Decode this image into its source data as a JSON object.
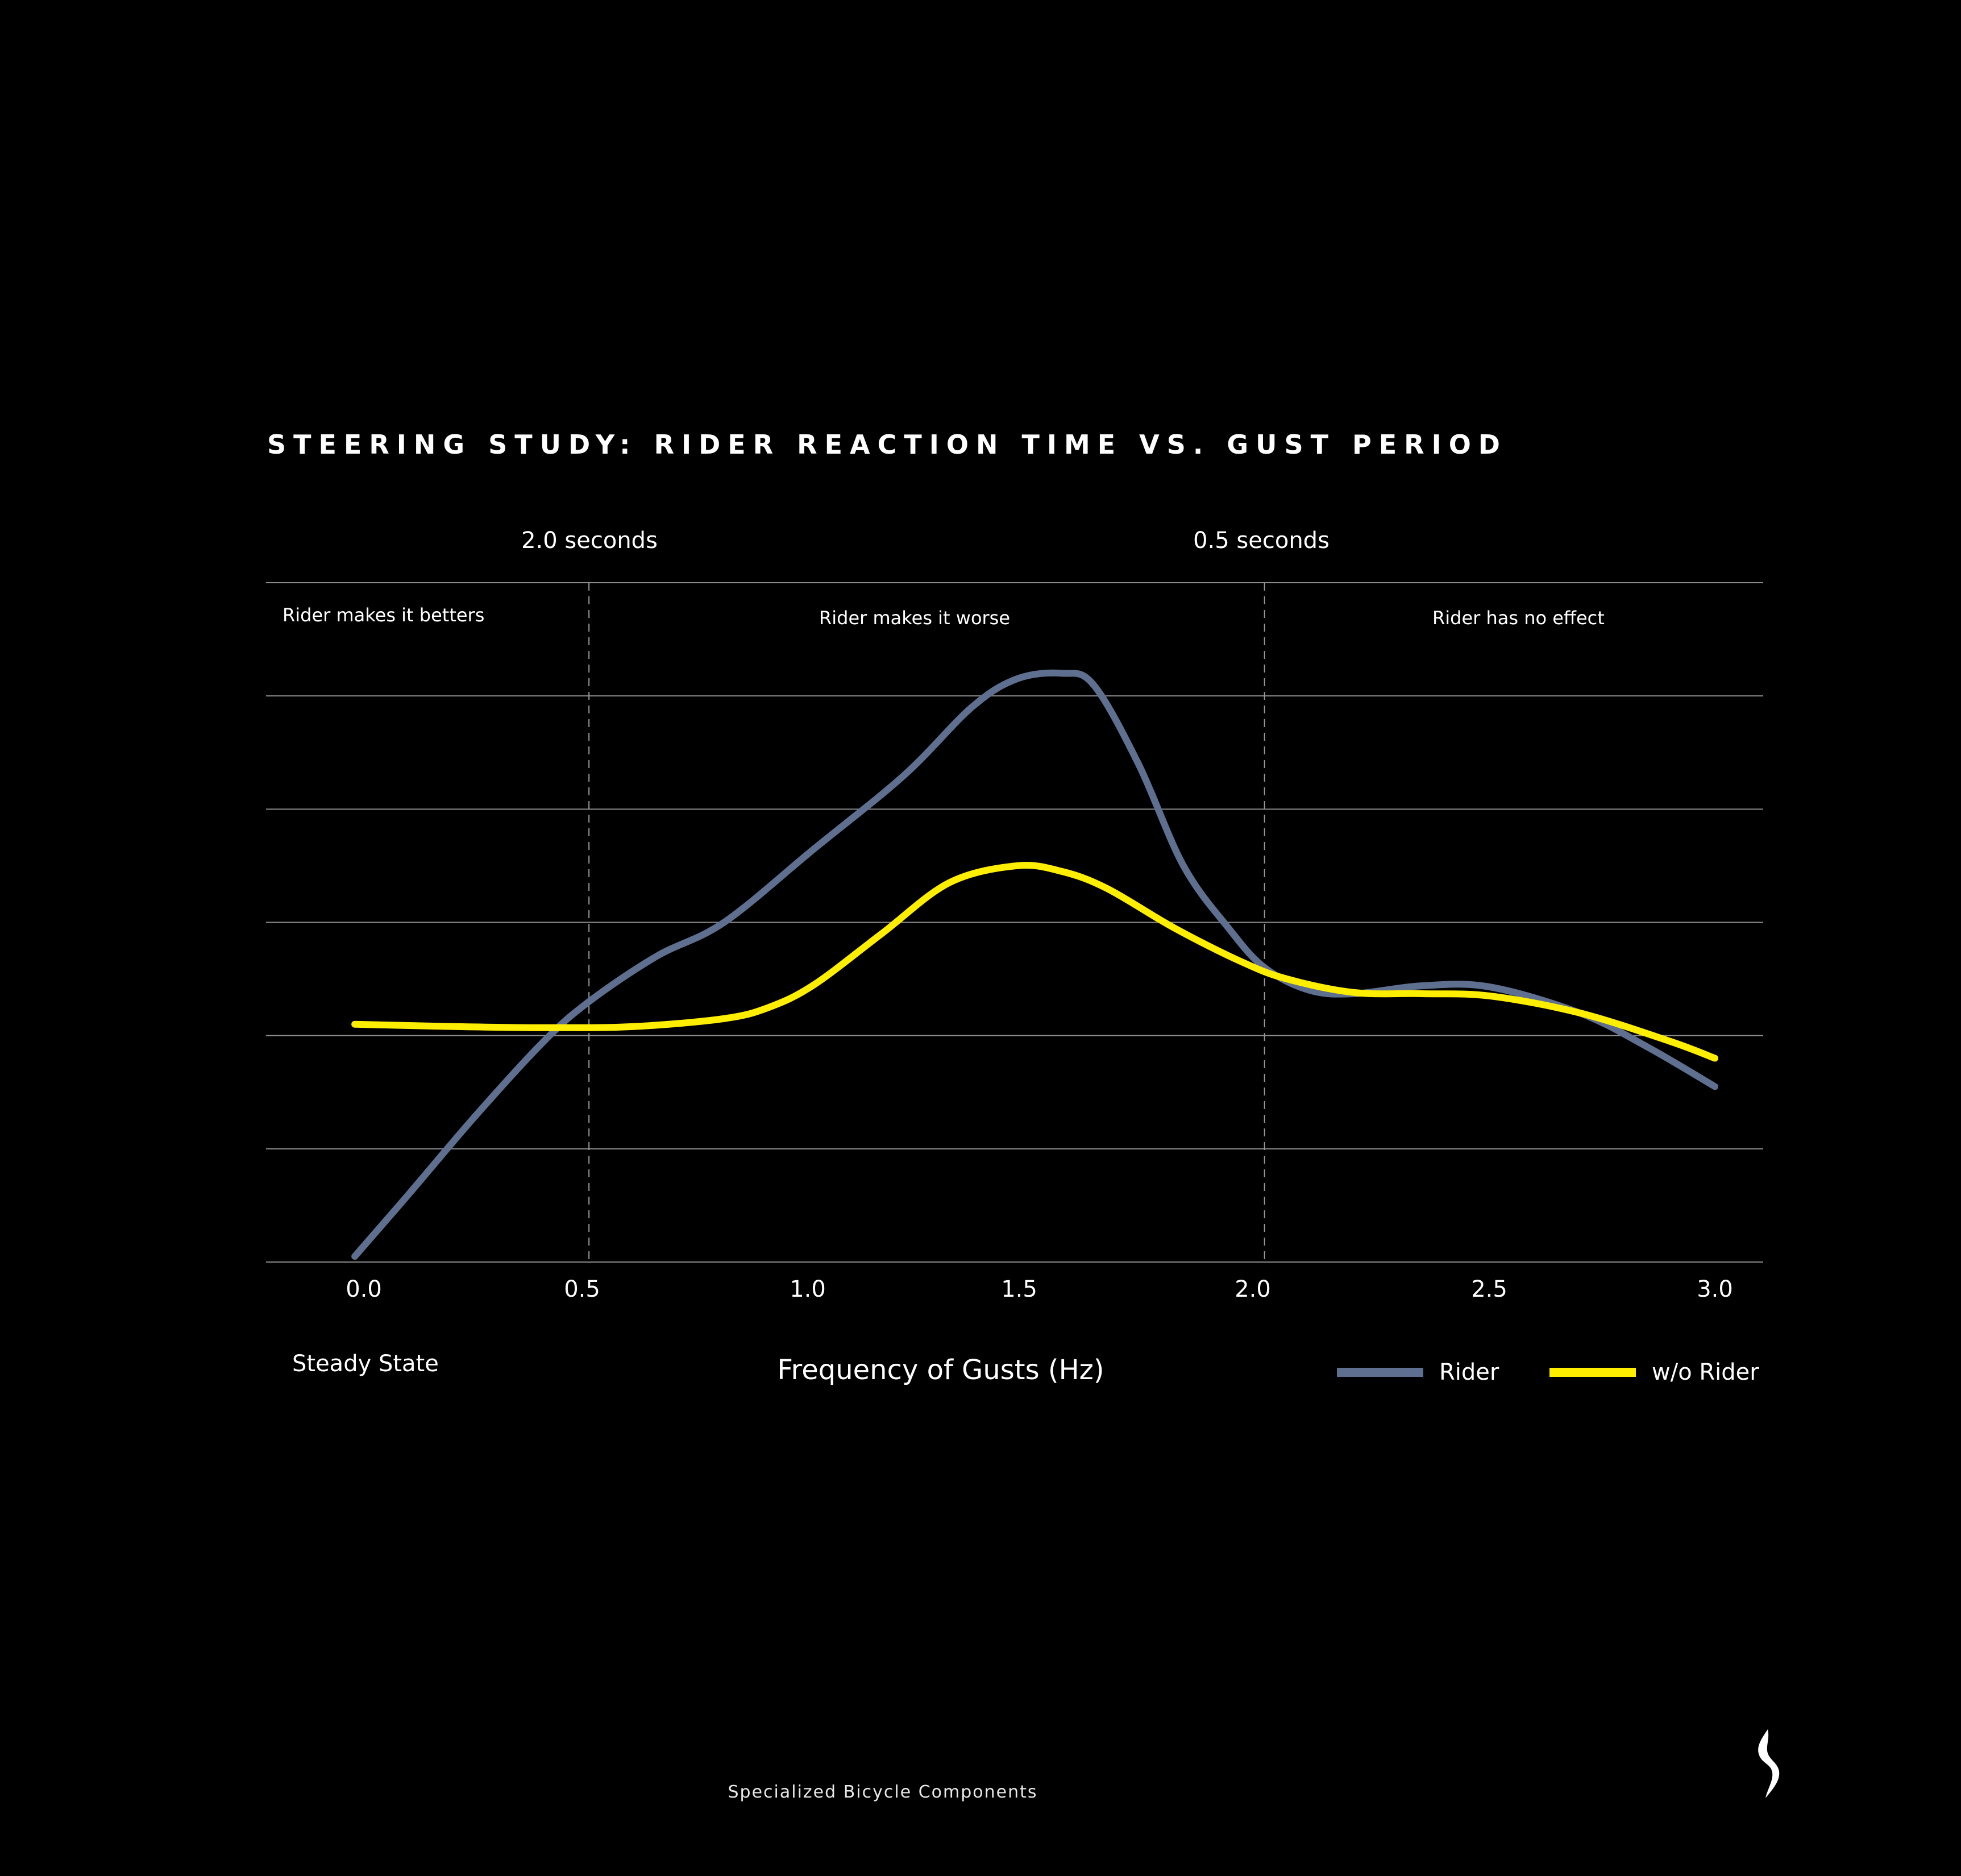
{
  "chart_data": {
    "type": "line",
    "title": "STEERING STUDY: RIDER REACTION TIME VS. GUST PERIOD",
    "xlabel": "Frequency of Gusts (Hz)",
    "ylabel": "",
    "xlim": [
      -0.2,
      3.1
    ],
    "ylim": [
      0,
      6
    ],
    "x_ticks": [
      "0.0",
      "0.5",
      "1.0",
      "1.5",
      "2.0",
      "2.5",
      "3.0"
    ],
    "x_tick_values": [
      0,
      0.5,
      1,
      1.5,
      2,
      2.5,
      3
    ],
    "grid": "horizontal",
    "legend_position": "bottom-right",
    "period_markers": [
      {
        "x": 0.5,
        "label": "2.0 seconds"
      },
      {
        "x": 2.0,
        "label": "0.5 seconds"
      }
    ],
    "regions": [
      {
        "label": "Rider makes it betters"
      },
      {
        "label": "Rider makes it worse"
      },
      {
        "label": "Rider has no effect"
      }
    ],
    "steady_state_label": "Steady State",
    "series": [
      {
        "name": "Rider",
        "color": "#5f6f8f",
        "x": [
          -0.02,
          0.1,
          0.25,
          0.4,
          0.5,
          0.65,
          0.8,
          1.0,
          1.2,
          1.35,
          1.45,
          1.55,
          1.62,
          1.72,
          1.82,
          1.92,
          2.0,
          2.1,
          2.2,
          2.35,
          2.5,
          2.7,
          2.85,
          3.0
        ],
        "y": [
          0.05,
          0.6,
          1.3,
          1.95,
          2.3,
          2.7,
          3.0,
          3.65,
          4.3,
          4.9,
          5.15,
          5.2,
          5.1,
          4.4,
          3.5,
          2.95,
          2.6,
          2.4,
          2.37,
          2.44,
          2.43,
          2.2,
          1.9,
          1.55
        ]
      },
      {
        "name": "w/o Rider",
        "color": "#ffee00",
        "x": [
          -0.02,
          0.2,
          0.4,
          0.6,
          0.8,
          0.9,
          1.0,
          1.15,
          1.3,
          1.45,
          1.55,
          1.65,
          1.8,
          1.95,
          2.05,
          2.2,
          2.35,
          2.5,
          2.7,
          2.9,
          3.0
        ],
        "y": [
          2.1,
          2.08,
          2.07,
          2.08,
          2.15,
          2.25,
          2.45,
          2.9,
          3.35,
          3.5,
          3.45,
          3.3,
          2.95,
          2.65,
          2.5,
          2.38,
          2.37,
          2.35,
          2.2,
          1.95,
          1.8
        ]
      }
    ]
  },
  "footer": "Specialized Bicycle Components",
  "logo_icon": "specialized-s-logo-icon",
  "colors": {
    "background": "#000000",
    "grid": "#8a8a8a",
    "text": "#ffffff"
  }
}
